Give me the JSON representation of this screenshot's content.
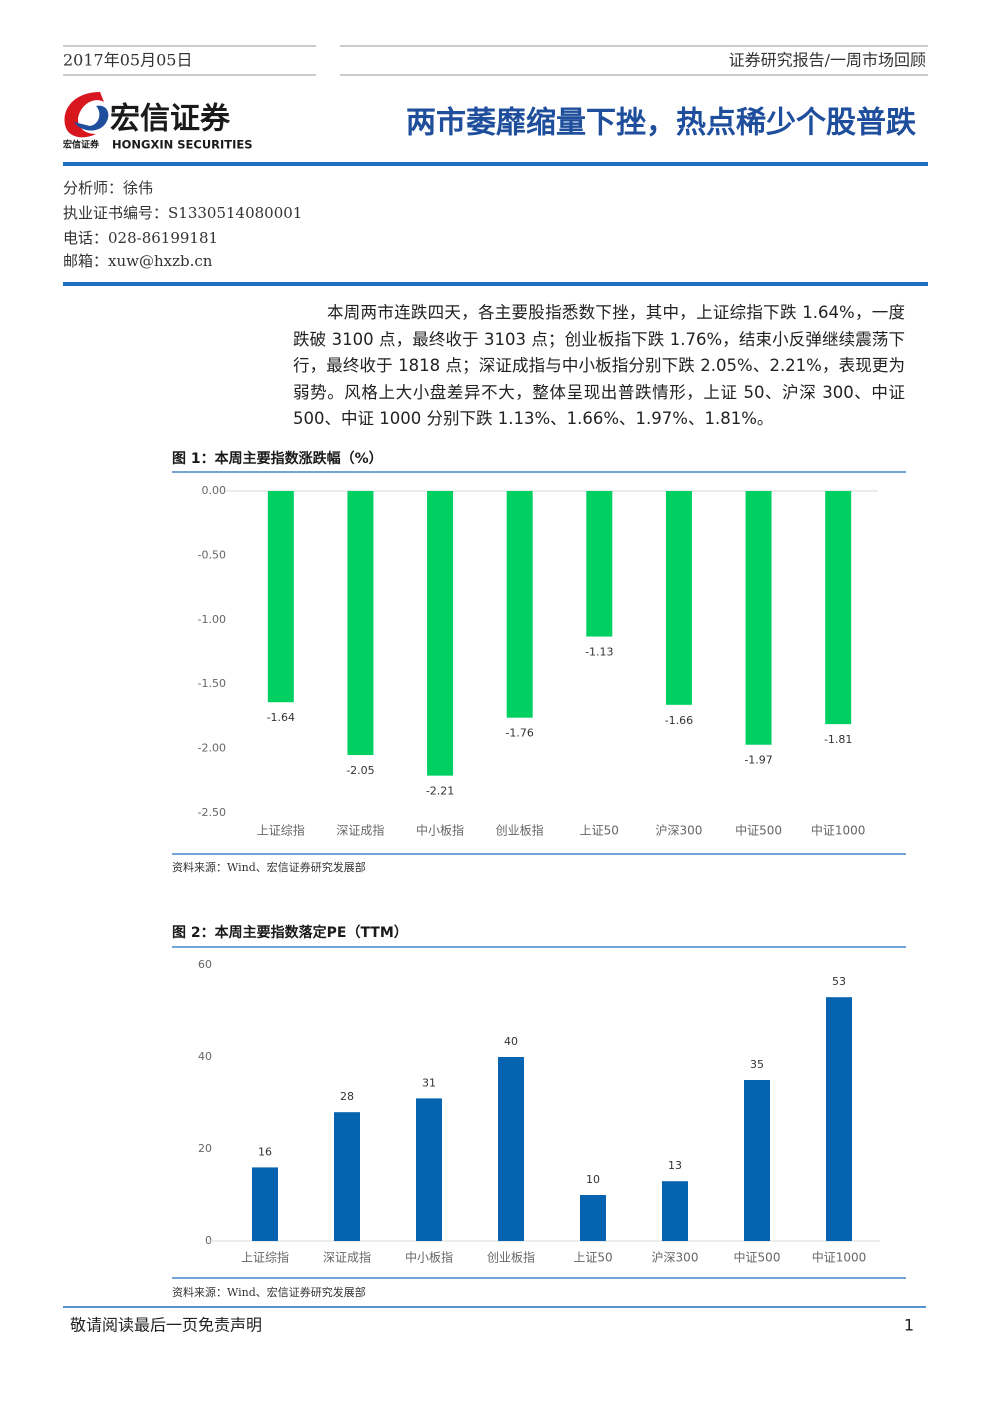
{
  "header": {
    "date": "2017年05月05日",
    "report_type": "证券研究报告/一周市场回顾",
    "logo_cn": "宏信证券",
    "logo_en": "HONGXIN SECURITIES",
    "logo_small": "宏信证券",
    "headline": "两市萎靡缩量下挫，热点稀少个股普跌"
  },
  "analyst": [
    "分析师：徐伟",
    "执业证书编号：S1330514080001",
    "电话：028-86199181",
    "邮箱：xuw@hxzb.cn"
  ],
  "summary": "本周两市连跌四天，各主要股指悉数下挫，其中，上证综指下跌 1.64%，一度跌破 3100 点，最终收于 3103 点；创业板指下跌 1.76%，结束小反弹继续震荡下行，最终收于 1818 点；深证成指与中小板指分别下跌 2.05%、2.21%，表现更为弱势。风格上大小盘差异不大，整体呈现出普跌情形，上证 50、沪深 300、中证 500、中证 1000 分别下跌 1.13%、1.66%、1.97%、1.81%。",
  "chart_data": [
    {
      "type": "bar",
      "title": "图 1：本周主要指数涨跌幅（%）",
      "source": "资料来源：Wind、宏信证券研究发展部",
      "categories": [
        "上证综指",
        "深证成指",
        "中小板指",
        "创业板指",
        "上证50",
        "沪深300",
        "中证500",
        "中证1000"
      ],
      "values": [
        -1.64,
        -2.05,
        -2.21,
        -1.76,
        -1.13,
        -1.66,
        -1.97,
        -1.81
      ],
      "color": "#00d062",
      "ylim": [
        -2.5,
        0
      ],
      "yticks": [
        {
          "value": 0,
          "label": "0.00"
        },
        {
          "value": -0.5,
          "label": "-0.50"
        },
        {
          "value": -1,
          "label": "-1.00"
        },
        {
          "value": -1.5,
          "label": "-1.50"
        },
        {
          "value": -2,
          "label": "-2.00"
        },
        {
          "value": -2.5,
          "label": "-2.50"
        }
      ]
    },
    {
      "type": "bar",
      "title": "图 2：本周主要指数落定PE（TTM）",
      "source": "资料来源：Wind、宏信证券研究发展部",
      "categories": [
        "上证综指",
        "深证成指",
        "中小板指",
        "创业板指",
        "上证50",
        "沪深300",
        "中证500",
        "中证1000"
      ],
      "values": [
        16,
        28,
        31,
        40,
        10,
        13,
        35,
        53
      ],
      "color": "#0563b0",
      "ylim": [
        0,
        60
      ],
      "yticks": [
        0,
        20,
        40,
        60
      ]
    }
  ],
  "footer": {
    "disclaimer": "敬请阅读最后一页免责声明",
    "page": 1
  }
}
